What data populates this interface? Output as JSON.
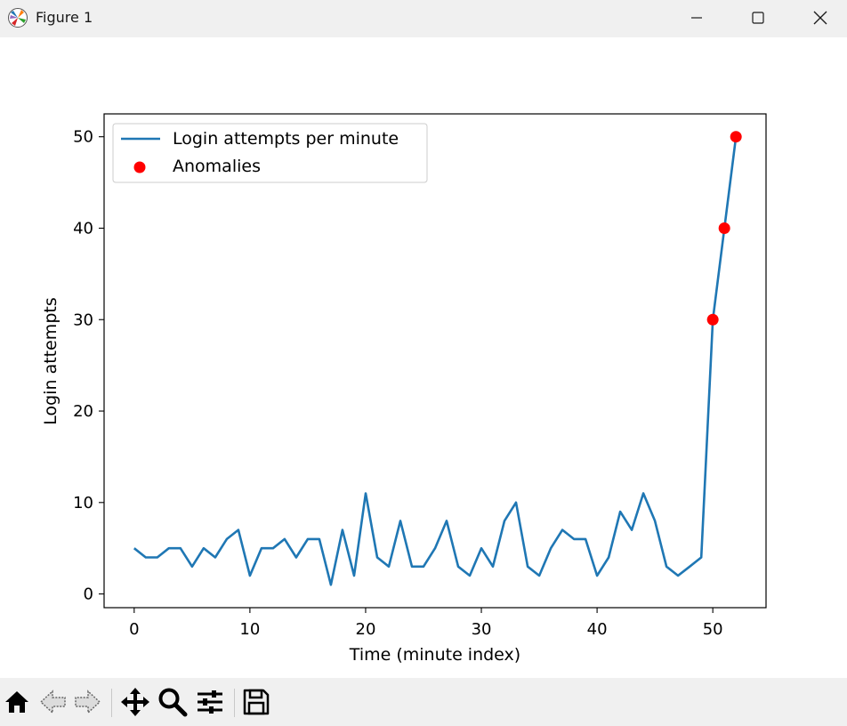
{
  "window": {
    "title": "Figure 1",
    "icons": [
      "matplotlib-logo-icon",
      "minimize-icon",
      "maximize-icon",
      "close-icon"
    ]
  },
  "toolbar": {
    "buttons": [
      "home-icon",
      "back-arrow-icon",
      "forward-arrow-icon",
      "pan-icon",
      "zoom-icon",
      "configure-subplots-icon",
      "save-icon"
    ]
  },
  "chart_data": {
    "type": "line",
    "title": "",
    "xlabel": "Time (minute index)",
    "ylabel": "Login attempts",
    "xlim": [
      -2.6,
      54.6
    ],
    "ylim": [
      -1.5,
      52.5
    ],
    "xticks": [
      0,
      10,
      20,
      30,
      40,
      50
    ],
    "yticks": [
      0,
      10,
      20,
      30,
      40,
      50
    ],
    "grid": false,
    "legend_position": "upper-left",
    "series": [
      {
        "name": "Login attempts per minute",
        "type": "line",
        "color": "#1f77b4",
        "x": [
          0,
          1,
          2,
          3,
          4,
          5,
          6,
          7,
          8,
          9,
          10,
          11,
          12,
          13,
          14,
          15,
          16,
          17,
          18,
          19,
          20,
          21,
          22,
          23,
          24,
          25,
          26,
          27,
          28,
          29,
          30,
          31,
          32,
          33,
          34,
          35,
          36,
          37,
          38,
          39,
          40,
          41,
          42,
          43,
          44,
          45,
          46,
          47,
          48,
          49,
          50,
          51,
          52
        ],
        "values": [
          5,
          4,
          4,
          5,
          5,
          3,
          5,
          4,
          6,
          7,
          2,
          5,
          5,
          6,
          4,
          6,
          6,
          1,
          7,
          2,
          11,
          4,
          3,
          8,
          3,
          3,
          5,
          8,
          3,
          2,
          5,
          3,
          8,
          10,
          3,
          2,
          5,
          7,
          6,
          6,
          2,
          4,
          9,
          7,
          11,
          8,
          3,
          2,
          3,
          4,
          30,
          40,
          50
        ]
      },
      {
        "name": "Anomalies",
        "type": "scatter",
        "color": "#ff0000",
        "x": [
          50,
          51,
          52
        ],
        "values": [
          30,
          40,
          50
        ]
      }
    ]
  }
}
